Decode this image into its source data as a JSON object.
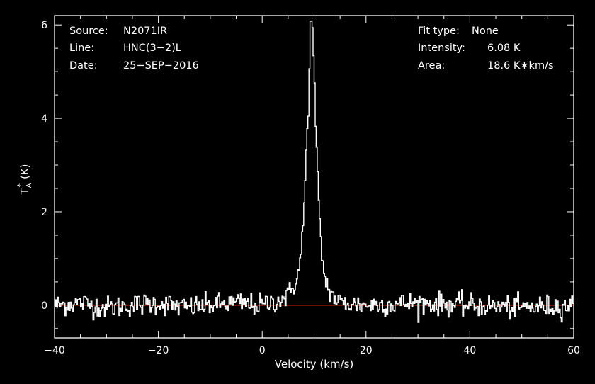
{
  "header": {
    "source_label": "Source:",
    "source_value": "N2071IR",
    "line_label": "Line:",
    "line_value": "HNC(3−2)L",
    "date_label": "Date:",
    "date_value": "25−SEP−2016",
    "fit_label": "Fit type:",
    "fit_value": "None",
    "intensity_label": "Intensity:",
    "intensity_value": "6.08 K",
    "area_label": "Area:",
    "area_value": "18.6 K∗km/s"
  },
  "colors": {
    "background": "#000000",
    "spectrum": "#ffffff",
    "baseline": "#cc2020"
  },
  "chart_data": {
    "type": "line",
    "xlabel": "Velocity (km/s)",
    "ylabel_main": "T",
    "ylabel_sup": "*",
    "ylabel_sub": "A",
    "ylabel_unit": "(K)",
    "xlim": [
      -40,
      60
    ],
    "ylim": [
      -0.7,
      6.2
    ],
    "xticks": [
      -40,
      -20,
      0,
      20,
      40,
      60
    ],
    "xtick_labels": [
      "−40",
      "−20",
      "0",
      "20",
      "40",
      "60"
    ],
    "yticks": [
      0,
      2,
      4,
      6
    ],
    "ytick_labels": [
      "0",
      "2",
      "4",
      "6"
    ],
    "baseline": 0,
    "peak": {
      "x": 9.5,
      "y": 6.08
    },
    "series": [
      {
        "x": [
          -40,
          -35,
          -30,
          -25,
          -20,
          -15,
          -10,
          -5,
          0,
          3,
          5,
          6,
          7,
          7.5,
          8,
          8.5,
          9,
          9.3,
          9.6,
          10,
          10.5,
          11,
          11.5,
          12,
          13,
          14,
          15,
          20,
          30,
          40,
          50,
          60
        ],
        "y": [
          0.0,
          0.05,
          -0.05,
          0.0,
          0.05,
          -0.05,
          0.0,
          0.05,
          0.0,
          0.1,
          0.2,
          0.4,
          0.7,
          1.1,
          1.9,
          3.2,
          4.6,
          5.6,
          6.08,
          5.0,
          3.2,
          1.9,
          1.1,
          0.6,
          0.3,
          0.15,
          0.05,
          0.0,
          0.05,
          0.0,
          -0.05,
          0.0
        ]
      }
    ],
    "noise_rms": 0.12
  }
}
